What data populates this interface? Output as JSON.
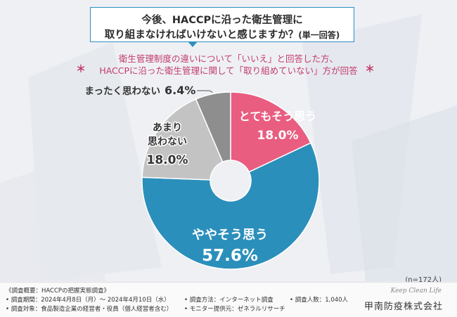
{
  "header": {
    "question_line1": "今後、HACCPに沿った衛生管理に",
    "question_line2": "取り組まなければいけないと感じますか？",
    "question_note": "(単一回答)",
    "sub_line1": "衛生管理制度の違いについて「いいえ」と回答した方、",
    "sub_line2": "HACCPに沿った衛生管理に関して「取り組めていない」方が回答",
    "star": "＊"
  },
  "chart_data": {
    "type": "pie",
    "donut": true,
    "slices": [
      {
        "label": "とてもそう思う",
        "value": 18.0,
        "display": "18.0%",
        "color": "#e85d80"
      },
      {
        "label": "ややそう思う",
        "value": 57.6,
        "display": "57.6%",
        "color": "#2b8fbb"
      },
      {
        "label": "あまり思わない",
        "value": 18.0,
        "display": "18.0%",
        "color": "#c3c3c3"
      },
      {
        "label": "まったく思わない",
        "value": 6.4,
        "display": "6.4%",
        "color": "#8e8e8e"
      }
    ],
    "n_label": "(n=172人)"
  },
  "footer": {
    "survey_overview": "《調査概要：HACCPの把握実態調査》",
    "period": "• 調査期間：2024年4月8日（月）～ 2024年4月10日（水）",
    "target": "• 調査対象：食品製造企業の経営者・役員（個人経営者含む）",
    "method": "• 調査方法：インターネット調査",
    "provider": "• モニター提供元：ゼネラルリサーチ",
    "count": "• 調査人数：1,040人",
    "logo_script": "Keep Clean Life",
    "logo_name": "甲南防疫株式会社"
  }
}
